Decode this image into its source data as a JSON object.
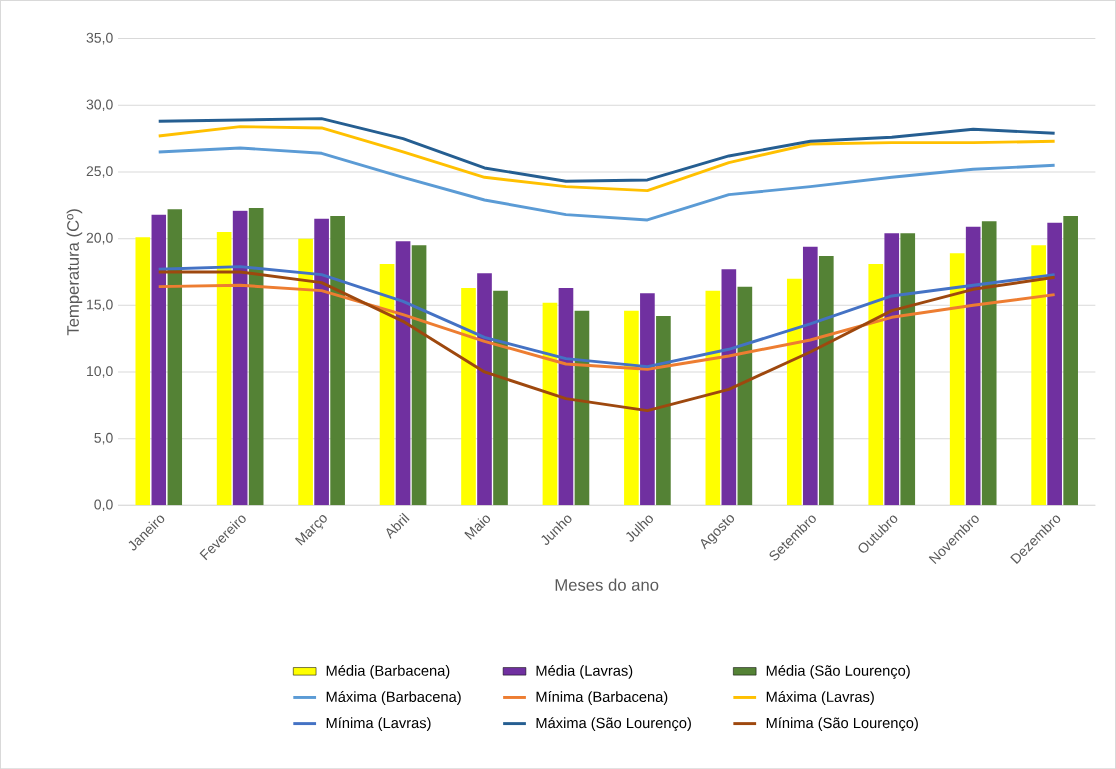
{
  "chart_data": {
    "type": "bar",
    "xlabel": "Meses do ano",
    "ylabel": "Temperatura (Cº)",
    "categories": [
      "Janeiro",
      "Fevereiro",
      "Março",
      "Abril",
      "Maio",
      "Junho",
      "Julho",
      "Agosto",
      "Setembro",
      "Outubro",
      "Novembro",
      "Dezembro"
    ],
    "ylim": [
      0,
      35
    ],
    "yticks": [
      {
        "value": 0,
        "label": "0,0"
      },
      {
        "value": 5,
        "label": "5,0"
      },
      {
        "value": 10,
        "label": "10,0"
      },
      {
        "value": 15,
        "label": "15,0"
      },
      {
        "value": 20,
        "label": "20,0"
      },
      {
        "value": 25,
        "label": "25,0"
      },
      {
        "value": 30,
        "label": "30,0"
      },
      {
        "value": 35,
        "label": "35,0"
      }
    ],
    "grid": "y",
    "legend": "bottom",
    "marker": "none",
    "line_style": "solid",
    "series": [
      {
        "name": "Média (Barbacena)",
        "color": "#ffff00",
        "values": [
          20.1,
          20.5,
          20.0,
          18.1,
          16.3,
          15.2,
          14.6,
          16.1,
          17.0,
          18.1,
          18.9,
          19.5
        ]
      },
      {
        "name": "Média (Lavras)",
        "color": "#7030a0",
        "values": [
          21.8,
          22.1,
          21.5,
          19.8,
          17.4,
          16.3,
          15.9,
          17.7,
          19.4,
          20.4,
          20.9,
          21.2
        ]
      },
      {
        "name": "Média (São Lourenço)",
        "color": "#548235",
        "values": [
          22.2,
          22.3,
          21.7,
          19.5,
          16.1,
          14.6,
          14.2,
          16.4,
          18.7,
          20.4,
          21.3,
          21.7
        ]
      },
      {
        "name": "Máxima (Barbacena)",
        "type": "line",
        "color": "#5b9bd5",
        "values": [
          26.5,
          26.8,
          26.4,
          24.6,
          22.9,
          21.8,
          21.4,
          23.3,
          23.9,
          24.6,
          25.2,
          25.5
        ]
      },
      {
        "name": "Mínima (Barbacena)",
        "type": "line",
        "color": "#ed7d31",
        "values": [
          16.4,
          16.5,
          16.1,
          14.3,
          12.3,
          10.6,
          10.2,
          11.2,
          12.4,
          14.1,
          15.0,
          15.8
        ]
      },
      {
        "name": "Máxima (Lavras)",
        "type": "line",
        "color": "#ffc000",
        "values": [
          27.7,
          28.4,
          28.3,
          26.5,
          24.6,
          23.9,
          23.6,
          25.7,
          27.1,
          27.2,
          27.2,
          27.3
        ]
      },
      {
        "name": "Mínima (Lavras)",
        "type": "line",
        "color": "#4472c4",
        "values": [
          17.7,
          17.9,
          17.3,
          15.3,
          12.6,
          11.0,
          10.4,
          11.7,
          13.6,
          15.7,
          16.5,
          17.3
        ]
      },
      {
        "name": "Máxima (São Lourenço)",
        "type": "line",
        "color": "#255e91",
        "values": [
          28.8,
          28.9,
          29.0,
          27.5,
          25.3,
          24.3,
          24.4,
          26.2,
          27.3,
          27.6,
          28.2,
          27.9
        ]
      },
      {
        "name": "Mínima (São Lourenço)",
        "type": "line",
        "color": "#9e480e",
        "values": [
          17.5,
          17.5,
          16.7,
          13.8,
          10.0,
          8.0,
          7.1,
          8.7,
          11.5,
          14.6,
          16.2,
          17.1
        ]
      }
    ]
  }
}
